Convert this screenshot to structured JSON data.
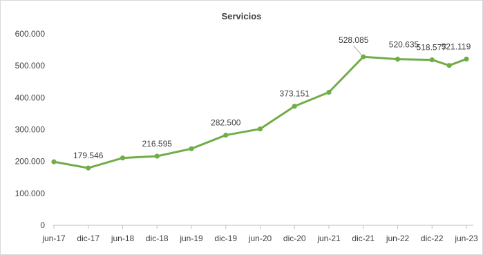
{
  "chart_data": {
    "type": "line",
    "title": "Servicios",
    "xlabel": "",
    "ylabel": "",
    "ylim": [
      0,
      600000
    ],
    "yticks": [
      0,
      100000,
      200000,
      300000,
      400000,
      500000,
      600000
    ],
    "ytick_labels": [
      "0",
      "100.000",
      "200.000",
      "300.000",
      "400.000",
      "500.000",
      "600.000"
    ],
    "categories": [
      "jun-17",
      "dic-17",
      "jun-18",
      "dic-18",
      "jun-19",
      "dic-19",
      "jun-20",
      "dic-20",
      "jun-21",
      "dic-21",
      "jun-22",
      "dic-22",
      "jun-23"
    ],
    "series": [
      {
        "color": "#70ad47",
        "points": [
          {
            "x": "jun-17",
            "y": 199000
          },
          {
            "x": "dic-17",
            "y": 179546,
            "label": "179.546"
          },
          {
            "x": "jun-18",
            "y": 211000
          },
          {
            "x": "dic-18",
            "y": 216595,
            "label": "216.595"
          },
          {
            "x": "jun-19",
            "y": 240000
          },
          {
            "x": "dic-19",
            "y": 282500,
            "label": "282.500"
          },
          {
            "x": "jun-20",
            "y": 302000
          },
          {
            "x": "dic-20",
            "y": 373151,
            "label": "373.151"
          },
          {
            "x": "jun-21",
            "y": 417000
          },
          {
            "x": "dic-21",
            "y": 528085,
            "label": "528.085"
          },
          {
            "x": "jun-22",
            "y": 520635,
            "label": "520.635"
          },
          {
            "x": "dic-22",
            "y": 518577,
            "label": "518.577"
          },
          {
            "x": "mar-23",
            "y": 501000
          },
          {
            "x": "jun-23",
            "y": 521119,
            "label": "521.119"
          }
        ]
      }
    ],
    "grid": false,
    "legend": "none"
  }
}
